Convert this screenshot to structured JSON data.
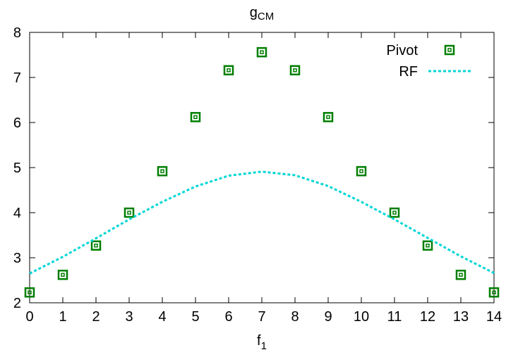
{
  "chart_data": {
    "type": "scatter",
    "title": "g",
    "title_subscript": "CM",
    "xlabel": "f",
    "xlabel_subscript": "1",
    "ylabel": "",
    "xlim": [
      0,
      14
    ],
    "ylim": [
      2,
      8
    ],
    "x_ticks": [
      0,
      1,
      2,
      3,
      4,
      5,
      6,
      7,
      8,
      9,
      10,
      11,
      12,
      13,
      14
    ],
    "y_ticks": [
      2,
      3,
      4,
      5,
      6,
      7,
      8
    ],
    "grid": false,
    "legend_position": "top-right",
    "series": [
      {
        "name": "Pivot",
        "style": "square-markers",
        "color": "#007f00",
        "x": [
          0,
          1,
          2,
          3,
          4,
          5,
          6,
          7,
          8,
          9,
          10,
          11,
          12,
          13,
          14
        ],
        "y": [
          2.23,
          2.62,
          3.27,
          4.0,
          4.92,
          6.12,
          7.16,
          7.56,
          7.16,
          6.12,
          4.92,
          4.0,
          3.27,
          2.62,
          2.23
        ]
      },
      {
        "name": "RF",
        "style": "dashed-line",
        "color": "#00d6d6",
        "x": [
          0,
          1,
          2,
          3,
          4,
          5,
          6,
          7,
          8,
          9,
          10,
          11,
          12,
          13,
          14
        ],
        "y": [
          2.65,
          3.02,
          3.43,
          3.85,
          4.24,
          4.58,
          4.82,
          4.91,
          4.83,
          4.59,
          4.24,
          3.85,
          3.44,
          3.03,
          2.66
        ]
      }
    ]
  }
}
